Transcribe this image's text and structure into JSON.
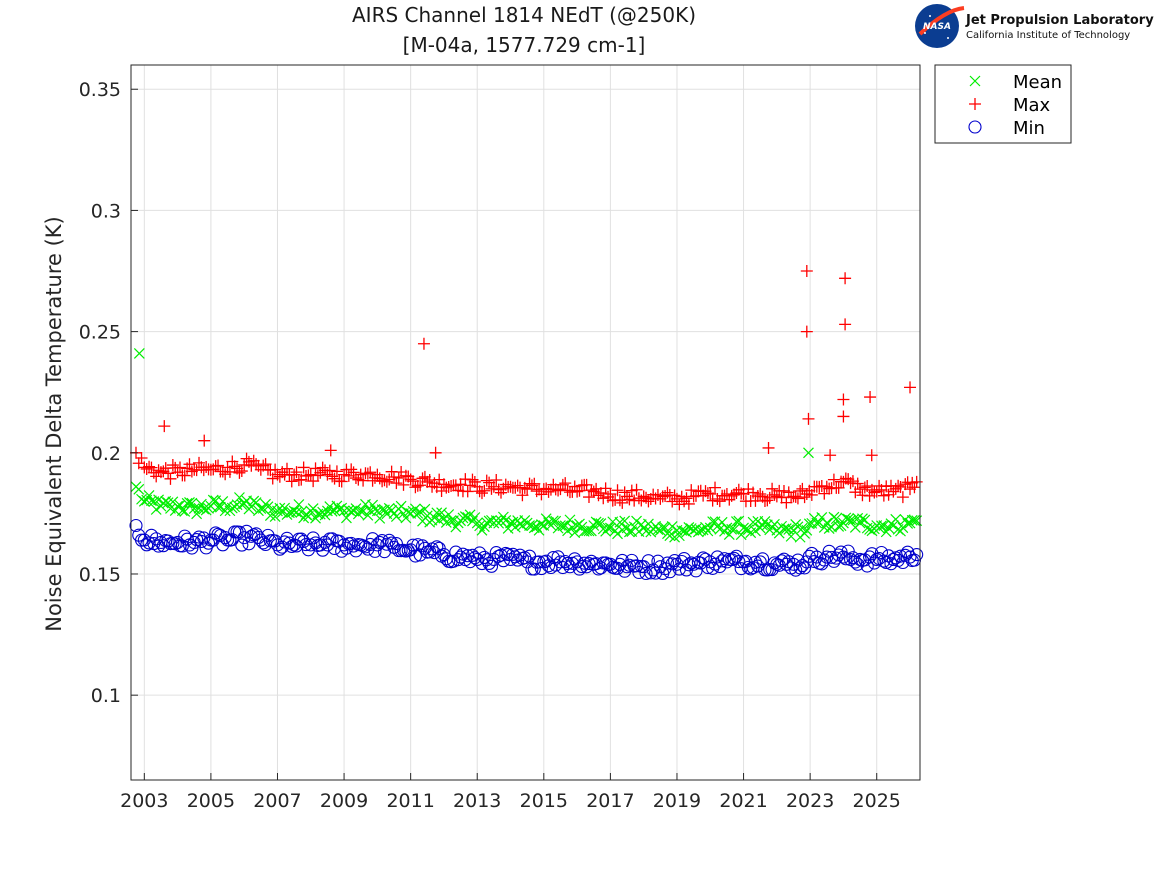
{
  "logo": {
    "nasa_text": "NASA",
    "org_name": "Jet Propulsion Laboratory",
    "org_sub": "California Institute of Technology"
  },
  "chart_data": {
    "type": "scatter",
    "title": "AIRS Channel 1814 NEdT (@250K)",
    "subtitle": "[M-04a, 1577.729 cm-1]",
    "xlabel": "",
    "ylabel": "Noise Equivalent Delta Temperature (K)",
    "xlim": [
      2002.6,
      2026.3
    ],
    "ylim": [
      0.065,
      0.36
    ],
    "xticks": [
      "2003",
      "2005",
      "2007",
      "2009",
      "2011",
      "2013",
      "2015",
      "2017",
      "2019",
      "2021",
      "2023",
      "2025"
    ],
    "yticks": [
      "0.1",
      "0.15",
      "0.2",
      "0.25",
      "0.3",
      "0.35"
    ],
    "grid": true,
    "legend_position": "outside-top-right",
    "series": [
      {
        "name": "Mean",
        "marker": "x",
        "color": "#00ee00",
        "x": [
          2002.75,
          2003.0,
          2003.5,
          2004.0,
          2004.5,
          2005.0,
          2005.5,
          2006.0,
          2006.5,
          2007.0,
          2007.5,
          2008.0,
          2008.5,
          2009.0,
          2009.5,
          2010.0,
          2010.5,
          2011.0,
          2011.5,
          2012.0,
          2012.5,
          2013.0,
          2013.5,
          2014.0,
          2014.5,
          2015.0,
          2015.5,
          2016.0,
          2016.5,
          2017.0,
          2017.5,
          2018.0,
          2018.5,
          2019.0,
          2019.5,
          2020.0,
          2020.5,
          2021.0,
          2021.5,
          2022.0,
          2022.5,
          2022.9,
          2023.2,
          2023.5,
          2024.0,
          2024.5,
          2025.0,
          2025.5,
          2026.0,
          2026.2
        ],
        "y": [
          0.186,
          0.18,
          0.178,
          0.178,
          0.177,
          0.178,
          0.178,
          0.179,
          0.177,
          0.176,
          0.176,
          0.176,
          0.176,
          0.176,
          0.176,
          0.176,
          0.175,
          0.175,
          0.174,
          0.173,
          0.172,
          0.171,
          0.171,
          0.171,
          0.171,
          0.17,
          0.17,
          0.17,
          0.17,
          0.169,
          0.169,
          0.169,
          0.168,
          0.168,
          0.168,
          0.169,
          0.169,
          0.169,
          0.169,
          0.168,
          0.168,
          0.168,
          0.171,
          0.171,
          0.171,
          0.171,
          0.17,
          0.17,
          0.171,
          0.172
        ]
      },
      {
        "name": "Max",
        "marker": "+",
        "color": "#ff0000",
        "x": [
          2002.75,
          2003.0,
          2003.5,
          2004.0,
          2004.5,
          2005.0,
          2005.5,
          2006.0,
          2006.5,
          2007.0,
          2007.5,
          2008.0,
          2008.5,
          2009.0,
          2009.5,
          2010.0,
          2010.5,
          2011.0,
          2011.5,
          2012.0,
          2012.5,
          2013.0,
          2013.5,
          2014.0,
          2014.5,
          2015.0,
          2015.5,
          2016.0,
          2016.5,
          2017.0,
          2017.5,
          2018.0,
          2018.5,
          2019.0,
          2019.5,
          2020.0,
          2020.5,
          2021.0,
          2021.5,
          2022.0,
          2022.5,
          2022.9,
          2023.2,
          2023.5,
          2024.0,
          2024.5,
          2025.0,
          2025.5,
          2026.0,
          2026.2
        ],
        "y": [
          0.2,
          0.194,
          0.192,
          0.192,
          0.193,
          0.193,
          0.194,
          0.195,
          0.193,
          0.191,
          0.191,
          0.191,
          0.191,
          0.191,
          0.191,
          0.191,
          0.19,
          0.189,
          0.188,
          0.187,
          0.187,
          0.186,
          0.186,
          0.186,
          0.185,
          0.185,
          0.185,
          0.184,
          0.184,
          0.183,
          0.182,
          0.182,
          0.181,
          0.181,
          0.182,
          0.183,
          0.183,
          0.183,
          0.183,
          0.182,
          0.182,
          0.183,
          0.186,
          0.186,
          0.188,
          0.185,
          0.184,
          0.184,
          0.185,
          0.188
        ]
      },
      {
        "name": "Min",
        "marker": "o",
        "color": "#0000cc",
        "x": [
          2002.75,
          2003.0,
          2003.5,
          2004.0,
          2004.5,
          2005.0,
          2005.5,
          2006.0,
          2006.5,
          2007.0,
          2007.5,
          2008.0,
          2008.5,
          2009.0,
          2009.5,
          2010.0,
          2010.5,
          2011.0,
          2011.5,
          2012.0,
          2012.5,
          2013.0,
          2013.5,
          2014.0,
          2014.5,
          2015.0,
          2015.5,
          2016.0,
          2016.5,
          2017.0,
          2017.5,
          2018.0,
          2018.5,
          2019.0,
          2019.5,
          2020.0,
          2020.5,
          2021.0,
          2021.5,
          2022.0,
          2022.5,
          2022.9,
          2023.2,
          2023.5,
          2024.0,
          2024.5,
          2025.0,
          2025.5,
          2026.0,
          2026.2
        ],
        "y": [
          0.17,
          0.164,
          0.163,
          0.163,
          0.163,
          0.164,
          0.164,
          0.165,
          0.164,
          0.162,
          0.162,
          0.162,
          0.162,
          0.162,
          0.162,
          0.162,
          0.161,
          0.16,
          0.159,
          0.158,
          0.157,
          0.156,
          0.156,
          0.156,
          0.155,
          0.155,
          0.155,
          0.155,
          0.154,
          0.154,
          0.153,
          0.153,
          0.153,
          0.154,
          0.154,
          0.155,
          0.155,
          0.155,
          0.155,
          0.154,
          0.154,
          0.155,
          0.157,
          0.157,
          0.157,
          0.156,
          0.156,
          0.156,
          0.157,
          0.158
        ]
      }
    ],
    "outliers": {
      "Mean": [
        [
          2002.85,
          0.241
        ],
        [
          2022.95,
          0.2
        ]
      ],
      "Max": [
        [
          2003.6,
          0.211
        ],
        [
          2004.8,
          0.205
        ],
        [
          2008.6,
          0.201
        ],
        [
          2011.4,
          0.245
        ],
        [
          2011.75,
          0.2
        ],
        [
          2021.75,
          0.202
        ],
        [
          2022.9,
          0.275
        ],
        [
          2022.9,
          0.25
        ],
        [
          2022.95,
          0.214
        ],
        [
          2023.6,
          0.199
        ],
        [
          2024.05,
          0.272
        ],
        [
          2024.05,
          0.253
        ],
        [
          2024.0,
          0.222
        ],
        [
          2024.0,
          0.215
        ],
        [
          2024.8,
          0.223
        ],
        [
          2024.85,
          0.199
        ],
        [
          2026.0,
          0.227
        ]
      ]
    }
  }
}
